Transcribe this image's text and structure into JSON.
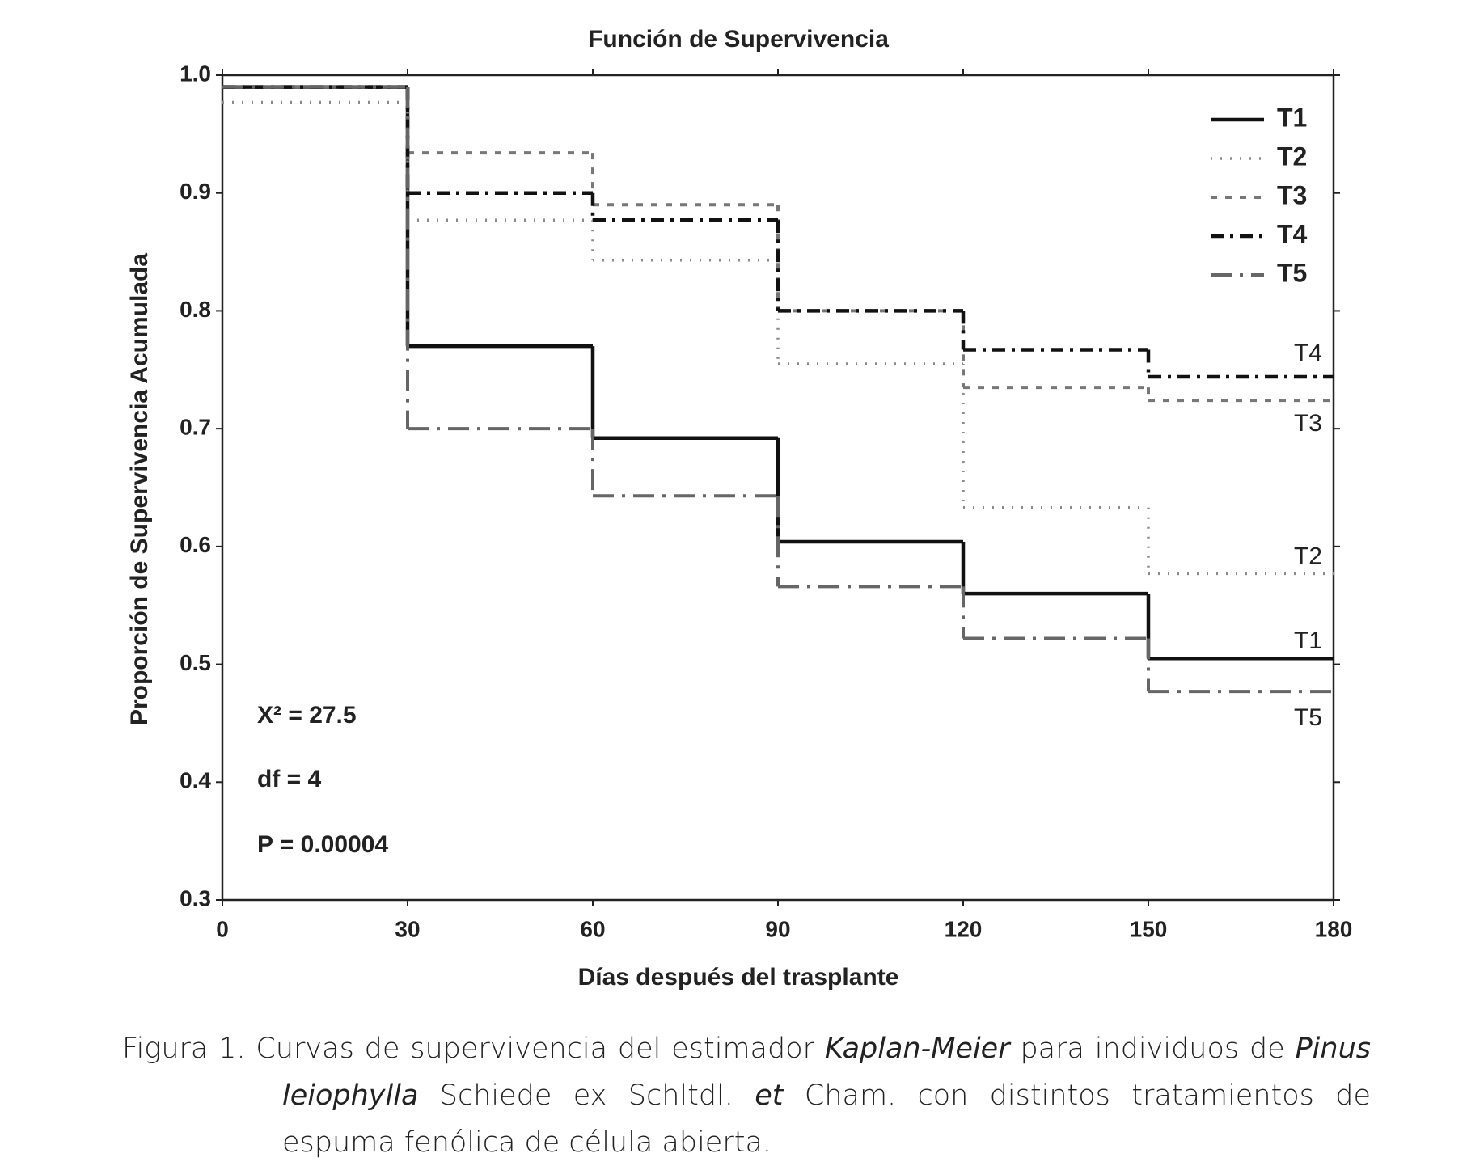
{
  "chart_data": {
    "type": "step",
    "title": "Función de Supervivencia",
    "x_label": "Días después del trasplante",
    "y_label": "Proporción de Supervivencia Acumulada",
    "x": [
      0,
      30,
      60,
      90,
      120,
      150
    ],
    "xlim": [
      0,
      180
    ],
    "xticks": [
      0,
      30,
      60,
      90,
      120,
      150,
      180
    ],
    "ylim": [
      0.3,
      1.0
    ],
    "yticks": [
      0.3,
      0.4,
      0.5,
      0.6,
      0.7,
      0.8,
      0.9,
      {
        "value": 1.0,
        "label": "1.0"
      }
    ],
    "grid": false,
    "legend": "upper right",
    "series": [
      {
        "name": "T1",
        "color": "#111111",
        "style": "solid",
        "values": [
          0.99,
          0.77,
          0.692,
          0.604,
          0.56,
          0.505
        ]
      },
      {
        "name": "T2",
        "color": "#8a8a8a",
        "style": "dotted",
        "values": [
          0.977,
          0.877,
          0.843,
          0.755,
          0.633,
          0.577
        ]
      },
      {
        "name": "T3",
        "color": "#777777",
        "style": "dashed",
        "values": [
          0.99,
          0.934,
          0.89,
          0.8,
          0.735,
          0.724
        ]
      },
      {
        "name": "T4",
        "color": "#111111",
        "style": "dashdot",
        "values": [
          0.99,
          0.9,
          0.877,
          0.8,
          0.767,
          0.744
        ]
      },
      {
        "name": "T5",
        "color": "#666666",
        "style": "longdashdot",
        "values": [
          0.99,
          0.7,
          0.643,
          0.566,
          0.522,
          0.477
        ]
      }
    ],
    "annotations": [
      "X² = 27.5",
      "df = 4",
      "P  = 0.00004"
    ]
  },
  "caption": [
    "Figura 1. Curvas de supervivencia del estimador ",
    "Kaplan-Meier",
    " para individuos de ",
    "Pinus leiophylla",
    " Schiede ex Schltdl. ",
    "et",
    " Cham. con distintos tratamientos de espuma fenólica de célula abierta."
  ]
}
